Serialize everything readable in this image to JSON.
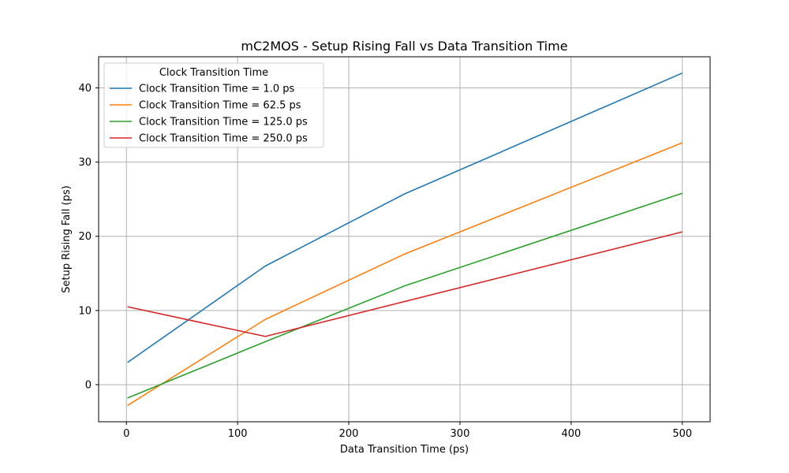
{
  "chart_data": {
    "type": "line",
    "title": "mC2MOS - Setup Rising Fall vs Data Transition Time",
    "xlabel": "Data Transition Time (ps)",
    "ylabel": "Setup Rising Fall (ps)",
    "xlim": [
      -25,
      525
    ],
    "ylim": [
      -5.0,
      44.2
    ],
    "xticks": [
      0,
      100,
      200,
      300,
      400,
      500
    ],
    "yticks": [
      0,
      10,
      20,
      30,
      40
    ],
    "grid": true,
    "legend": {
      "title": "Clock Transition Time",
      "placement": "top-left"
    },
    "x": [
      1.0,
      125.0,
      250.0,
      500.0
    ],
    "series": [
      {
        "name": "Clock Transition Time = 1.0 ps",
        "color": "#1f77b4",
        "values": [
          3.0,
          16.0,
          25.7,
          42.0
        ]
      },
      {
        "name": "Clock Transition Time = 62.5 ps",
        "color": "#ff7f0e",
        "values": [
          -2.8,
          8.8,
          17.6,
          32.6
        ]
      },
      {
        "name": "Clock Transition Time = 125.0 ps",
        "color": "#2ca02c",
        "values": [
          -1.8,
          5.8,
          13.3,
          25.8
        ]
      },
      {
        "name": "Clock Transition Time = 250.0 ps",
        "color": "#d62728",
        "values": [
          10.5,
          6.5,
          11.2,
          20.6
        ]
      }
    ]
  }
}
